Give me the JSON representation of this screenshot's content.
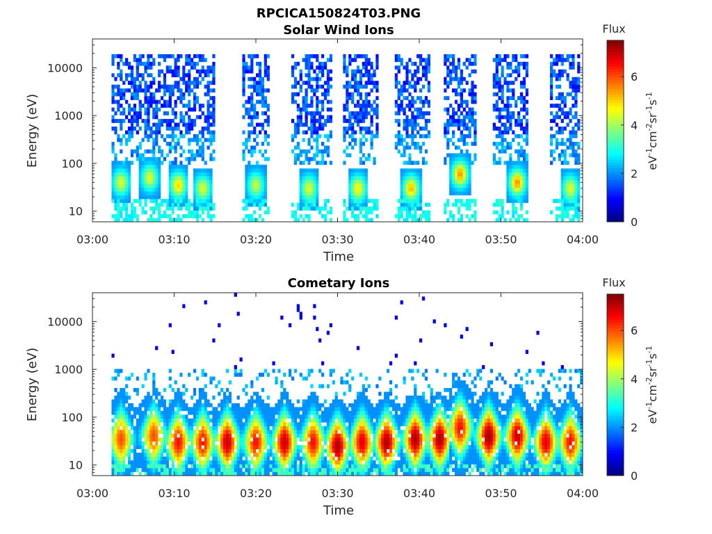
{
  "figure": {
    "title": "RPCICA150824T03.PNG"
  },
  "chart_data": [
    {
      "type": "heatmap",
      "title": "Solar Wind Ions",
      "xlabel": "Time",
      "ylabel": "Energy (eV)",
      "x_ticks": [
        "03:00",
        "03:10",
        "03:20",
        "03:30",
        "03:40",
        "03:50",
        "04:00"
      ],
      "x_range": [
        "03:00",
        "04:00"
      ],
      "y_scale": "log",
      "y_ticks": [
        10,
        100,
        1000,
        10000
      ],
      "y_tick_labels": [
        "10",
        "100",
        "1000",
        "10000"
      ],
      "y_range": [
        6,
        40000
      ],
      "colorbar": {
        "title": "Flux",
        "units": "eV-1cm-2sr-1s-1",
        "range": [
          0,
          7.5
        ],
        "ticks": [
          0,
          2,
          4,
          6
        ],
        "tick_labels": [
          "0",
          "2",
          "4",
          "6"
        ],
        "colormap": "jet"
      },
      "x_unit": "minutes after 03:00",
      "active_intervals": [
        [
          2.5,
          15.0
        ],
        [
          18.2,
          21.5
        ],
        [
          24.5,
          29.2
        ],
        [
          30.8,
          35.0
        ],
        [
          37.0,
          41.2
        ],
        [
          43.0,
          47.0
        ],
        [
          49.0,
          53.2
        ],
        [
          56.0,
          59.8
        ]
      ],
      "peak_features": [
        {
          "t": 3.5,
          "energy": 40,
          "flux": 4.5
        },
        {
          "t": 7.0,
          "energy": 50,
          "flux": 4.5
        },
        {
          "t": 10.5,
          "energy": 35,
          "flux": 5.0
        },
        {
          "t": 13.5,
          "energy": 30,
          "flux": 4.5
        },
        {
          "t": 20.0,
          "energy": 35,
          "flux": 4.3
        },
        {
          "t": 26.5,
          "energy": 30,
          "flux": 4.5
        },
        {
          "t": 32.5,
          "energy": 30,
          "flux": 4.8
        },
        {
          "t": 39.0,
          "energy": 30,
          "flux": 5.2
        },
        {
          "t": 45.0,
          "energy": 60,
          "flux": 5.5
        },
        {
          "t": 52.0,
          "energy": 40,
          "flux": 5.5
        },
        {
          "t": 58.5,
          "energy": 30,
          "flux": 4.5
        }
      ]
    },
    {
      "type": "heatmap",
      "title": "Cometary Ions",
      "xlabel": "Time",
      "ylabel": "Energy (eV)",
      "x_ticks": [
        "03:00",
        "03:10",
        "03:20",
        "03:30",
        "03:40",
        "03:50",
        "04:00"
      ],
      "x_range": [
        "03:00",
        "04:00"
      ],
      "y_scale": "log",
      "y_ticks": [
        10,
        100,
        1000,
        10000
      ],
      "y_tick_labels": [
        "10",
        "100",
        "1000",
        "10000"
      ],
      "y_range": [
        6,
        40000
      ],
      "colorbar": {
        "title": "Flux",
        "units": "eV-1cm-2sr-1s-1",
        "range": [
          0,
          7.5
        ],
        "ticks": [
          0,
          2,
          4,
          6
        ],
        "tick_labels": [
          "0",
          "2",
          "4",
          "6"
        ],
        "colormap": "jet"
      },
      "x_unit": "minutes after 03:00",
      "active_intervals": [
        [
          2.3,
          60.0
        ]
      ],
      "peak_features": [
        {
          "t": 3.5,
          "energy": 35,
          "flux": 6.0
        },
        {
          "t": 7.5,
          "energy": 40,
          "flux": 6.0
        },
        {
          "t": 10.5,
          "energy": 30,
          "flux": 6.5
        },
        {
          "t": 13.5,
          "energy": 30,
          "flux": 6.5
        },
        {
          "t": 16.5,
          "energy": 30,
          "flux": 7.0
        },
        {
          "t": 20.0,
          "energy": 30,
          "flux": 6.5
        },
        {
          "t": 23.5,
          "energy": 30,
          "flux": 7.0
        },
        {
          "t": 27.0,
          "energy": 30,
          "flux": 6.5
        },
        {
          "t": 30.0,
          "energy": 25,
          "flux": 7.2
        },
        {
          "t": 33.0,
          "energy": 30,
          "flux": 6.8
        },
        {
          "t": 36.0,
          "energy": 30,
          "flux": 7.2
        },
        {
          "t": 39.5,
          "energy": 35,
          "flux": 7.2
        },
        {
          "t": 42.5,
          "energy": 35,
          "flux": 7.2
        },
        {
          "t": 45.0,
          "energy": 60,
          "flux": 6.5
        },
        {
          "t": 48.5,
          "energy": 40,
          "flux": 7.3
        },
        {
          "t": 52.0,
          "energy": 40,
          "flux": 7.0
        },
        {
          "t": 55.5,
          "energy": 30,
          "flux": 6.8
        },
        {
          "t": 58.5,
          "energy": 30,
          "flux": 6.5
        }
      ]
    }
  ]
}
